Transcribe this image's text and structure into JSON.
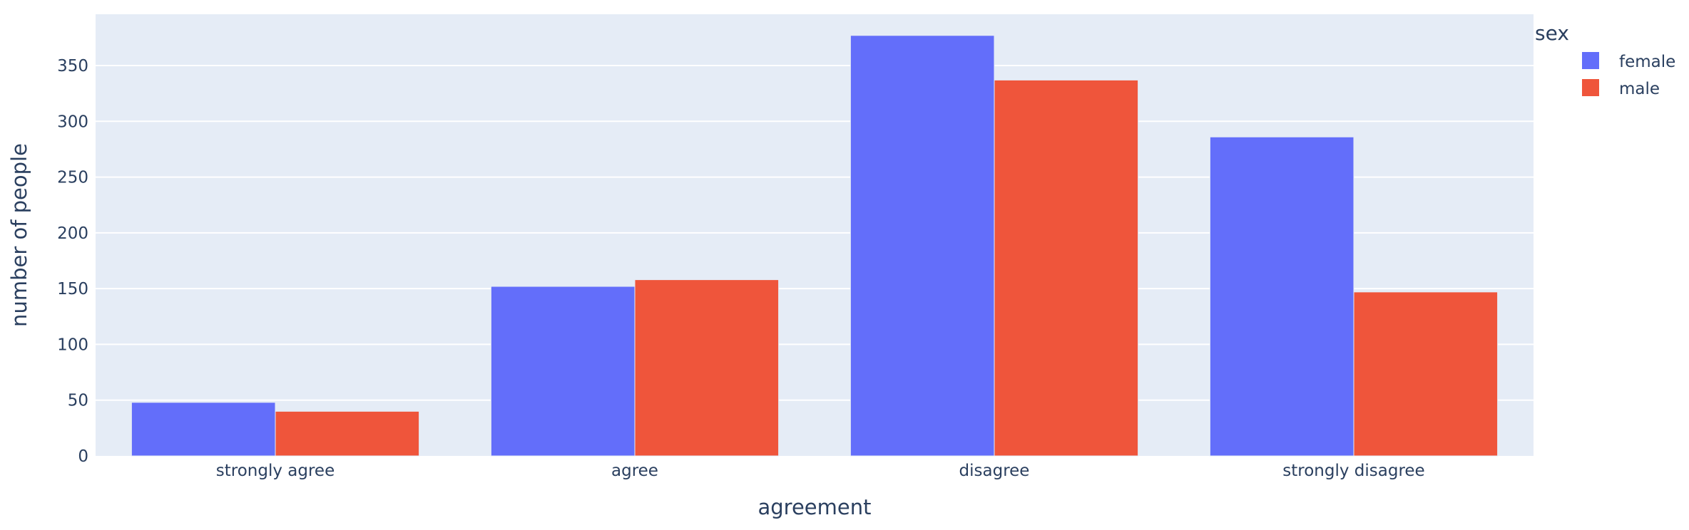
{
  "colors": {
    "plot_bg": "#e5ecf6",
    "grid": "#ffffff",
    "text": "#2a3f5f",
    "female": "#636efa",
    "male": "#ef553b"
  },
  "chart_data": {
    "type": "bar",
    "barmode": "group",
    "categories": [
      "strongly agree",
      "agree",
      "disagree",
      "strongly disagree"
    ],
    "series": [
      {
        "name": "female",
        "color": "#636efa",
        "values": [
          48,
          152,
          377,
          286
        ]
      },
      {
        "name": "male",
        "color": "#ef553b",
        "values": [
          40,
          158,
          337,
          147
        ]
      }
    ],
    "xlabel": "agreement",
    "ylabel": "number of people",
    "ylim": [
      0,
      396
    ],
    "yticks": [
      0,
      50,
      100,
      150,
      200,
      250,
      300,
      350
    ],
    "grid": true,
    "legend": {
      "title": "sex",
      "position": "top-right-outside"
    }
  }
}
